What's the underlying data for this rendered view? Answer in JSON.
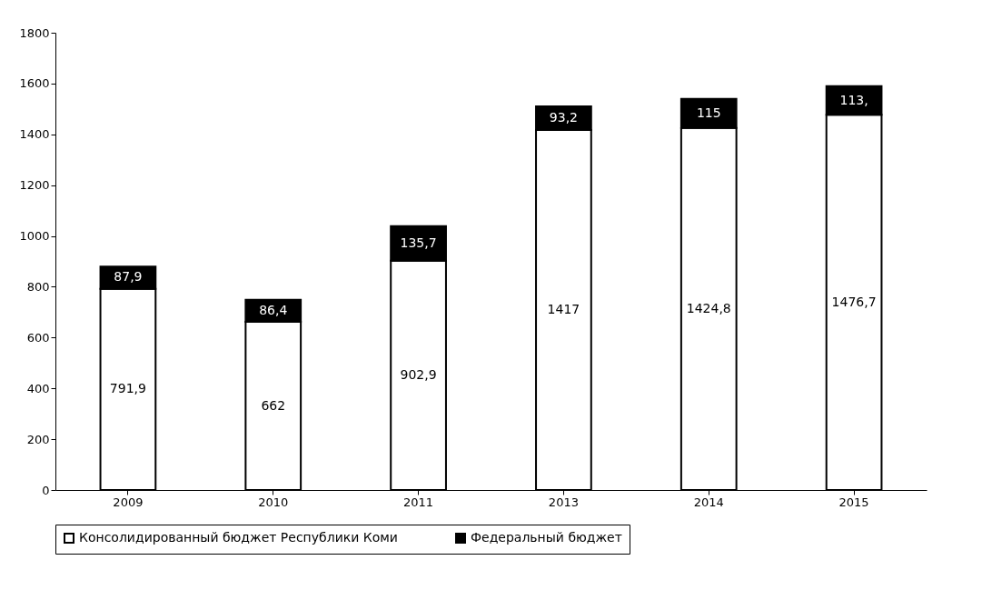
{
  "chart_data": {
    "type": "bar",
    "stacked": true,
    "categories": [
      "2009",
      "2010",
      "2011",
      "2013",
      "2014",
      "2015"
    ],
    "series": [
      {
        "name": "Консолидированный бюджет Республики Коми",
        "color": "#ffffff",
        "values": [
          791.9,
          662,
          902.9,
          1417,
          1424.8,
          1476.7
        ],
        "value_labels": [
          "791,9",
          "662",
          "902,9",
          "1417",
          "1424,8",
          "1476,7"
        ]
      },
      {
        "name": "Федеральный бюджет",
        "color": "#000000",
        "values": [
          87.9,
          86.4,
          135.7,
          93.2,
          115,
          113
        ],
        "value_labels": [
          "87,9",
          "86,4",
          "135,7",
          "93,2",
          "115",
          "113,"
        ]
      }
    ],
    "ylim": [
      0,
      1800
    ],
    "yticks": [
      0,
      200,
      400,
      600,
      800,
      1000,
      1200,
      1400,
      1600,
      1800
    ],
    "grid": false,
    "legend": "bottom"
  }
}
